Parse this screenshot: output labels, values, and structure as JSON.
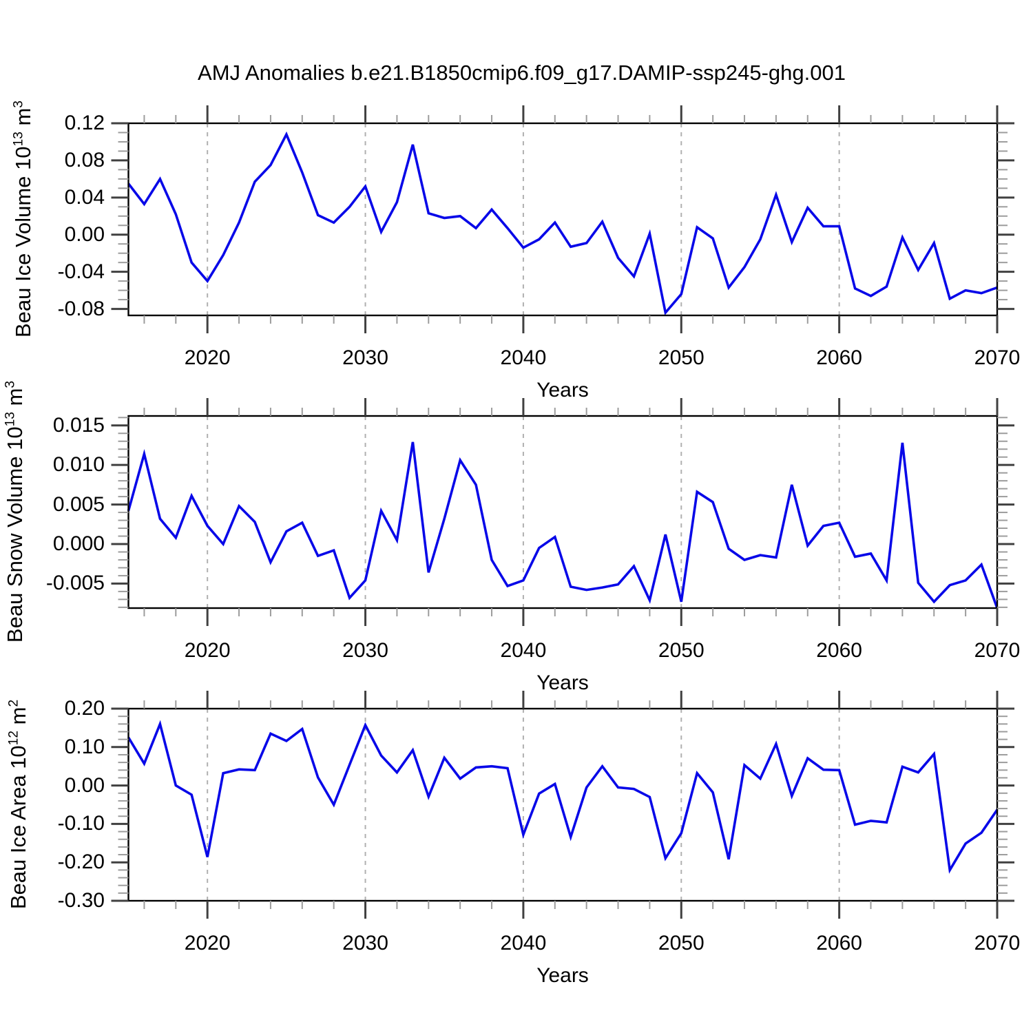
{
  "title": "AMJ Anomalies b.e21.B1850cmip6.f09_g17.DAMIP-ssp245-ghg.001",
  "colors": {
    "line": "#0808e8",
    "grid": "#b0b0b0",
    "axis": "#000000",
    "tick_major": "#404040",
    "tick_minor": "#9c9c9c",
    "background": "#ffffff",
    "text": "#000000"
  },
  "x_axis": {
    "label": "Years",
    "start": 2015,
    "end": 2070,
    "major_ticks": [
      2020,
      2030,
      2040,
      2050,
      2060,
      2070
    ],
    "major_tick_labels": [
      "2020",
      "2030",
      "2040",
      "2050",
      "2060",
      "2070"
    ],
    "minor_step": 2,
    "gridlines": [
      2020,
      2030,
      2040,
      2050,
      2060
    ]
  },
  "years": [
    2015,
    2016,
    2017,
    2018,
    2019,
    2020,
    2021,
    2022,
    2023,
    2024,
    2025,
    2026,
    2027,
    2028,
    2029,
    2030,
    2031,
    2032,
    2033,
    2034,
    2035,
    2036,
    2037,
    2038,
    2039,
    2040,
    2041,
    2042,
    2043,
    2044,
    2045,
    2046,
    2047,
    2048,
    2049,
    2050,
    2051,
    2052,
    2053,
    2054,
    2055,
    2056,
    2057,
    2058,
    2059,
    2060,
    2061,
    2062,
    2063,
    2064,
    2065,
    2066,
    2067,
    2068,
    2069,
    2070
  ],
  "chart_data": [
    {
      "type": "line",
      "name": "beau-ice-volume",
      "ylabel": "Beau Ice Volume 10^13 m^3",
      "ylabel_parts": [
        [
          "t",
          "Beau Ice Volume 10"
        ],
        [
          "s",
          "13"
        ],
        [
          "t",
          " m"
        ],
        [
          "s",
          "3"
        ]
      ],
      "ylim": [
        -0.087,
        0.12
      ],
      "ytick_values": [
        0.12,
        0.08,
        0.04,
        0.0,
        -0.04,
        -0.08
      ],
      "ytick_labels": [
        "0.12",
        "0.08",
        "0.04",
        "0.00",
        "-0.04",
        "-0.08"
      ],
      "y_minor_step": 0.01,
      "values": [
        0.055,
        0.033,
        0.06,
        0.022,
        -0.03,
        -0.05,
        -0.022,
        0.013,
        0.057,
        0.075,
        0.108,
        0.067,
        0.021,
        0.013,
        0.03,
        0.052,
        0.003,
        0.035,
        0.097,
        0.023,
        0.018,
        0.02,
        0.007,
        0.027,
        0.007,
        -0.014,
        -0.005,
        0.013,
        -0.013,
        -0.009,
        0.014,
        -0.025,
        -0.045,
        0.001,
        -0.084,
        -0.064,
        0.008,
        -0.004,
        -0.057,
        -0.035,
        -0.005,
        0.043,
        -0.008,
        0.029,
        0.009,
        0.009,
        -0.058,
        -0.066,
        -0.056,
        -0.003,
        -0.038,
        -0.009,
        -0.069,
        -0.06,
        -0.063,
        -0.057
      ]
    },
    {
      "type": "line",
      "name": "beau-snow-volume",
      "ylabel": "Beau Snow Volume 10^13 m^3",
      "ylabel_parts": [
        [
          "t",
          "Beau Snow Volume 10"
        ],
        [
          "s",
          "13"
        ],
        [
          "t",
          " m"
        ],
        [
          "s",
          "3"
        ]
      ],
      "ylim": [
        -0.0081,
        0.0162
      ],
      "ytick_values": [
        0.015,
        0.01,
        0.005,
        0.0,
        -0.005
      ],
      "ytick_labels": [
        "0.015",
        "0.010",
        "0.005",
        "0.000",
        "-0.005"
      ],
      "y_minor_step": 0.001,
      "values": [
        0.0042,
        0.0114,
        0.0032,
        0.0008,
        0.0061,
        0.0023,
        0.0,
        0.0048,
        0.0028,
        -0.0023,
        0.0016,
        0.0027,
        -0.0015,
        -0.0008,
        -0.0068,
        -0.0046,
        0.0042,
        0.0005,
        0.0129,
        -0.0036,
        0.0032,
        0.0106,
        0.0075,
        -0.002,
        -0.0053,
        -0.0046,
        -0.0005,
        0.0009,
        -0.0054,
        -0.0058,
        -0.0055,
        -0.0051,
        -0.0028,
        -0.0071,
        0.0012,
        -0.0073,
        0.0066,
        0.0053,
        -0.0006,
        -0.002,
        -0.0014,
        -0.0017,
        0.0075,
        -0.0002,
        0.0023,
        0.0027,
        -0.0016,
        -0.0012,
        -0.0046,
        0.0128,
        -0.0049,
        -0.0073,
        -0.0052,
        -0.0046,
        -0.0026,
        -0.0081
      ]
    },
    {
      "type": "line",
      "name": "beau-ice-area",
      "ylabel": "Beau Ice Area 10^12 m^2",
      "ylabel_parts": [
        [
          "t",
          "Beau Ice Area 10"
        ],
        [
          "s",
          "12"
        ],
        [
          "t",
          " m"
        ],
        [
          "s",
          "2"
        ]
      ],
      "ylim": [
        -0.3,
        0.2
      ],
      "ytick_values": [
        0.2,
        0.1,
        0.0,
        -0.1,
        -0.2,
        -0.3
      ],
      "ytick_labels": [
        "0.20",
        "0.10",
        "0.00",
        "-0.10",
        "-0.20",
        "-0.30"
      ],
      "y_minor_step": 0.02,
      "values": [
        0.125,
        0.057,
        0.16,
        0.0,
        -0.024,
        -0.186,
        0.032,
        0.042,
        0.04,
        0.135,
        0.116,
        0.147,
        0.021,
        -0.05,
        0.054,
        0.157,
        0.078,
        0.034,
        0.092,
        -0.029,
        0.072,
        0.018,
        0.047,
        0.05,
        0.045,
        -0.128,
        -0.021,
        0.004,
        -0.134,
        -0.005,
        0.05,
        -0.005,
        -0.009,
        -0.03,
        -0.189,
        -0.124,
        0.032,
        -0.018,
        -0.192,
        0.053,
        0.018,
        0.108,
        -0.027,
        0.071,
        0.041,
        0.04,
        -0.102,
        -0.092,
        -0.096,
        0.049,
        0.034,
        0.082,
        -0.22,
        -0.151,
        -0.123,
        -0.063
      ]
    }
  ]
}
